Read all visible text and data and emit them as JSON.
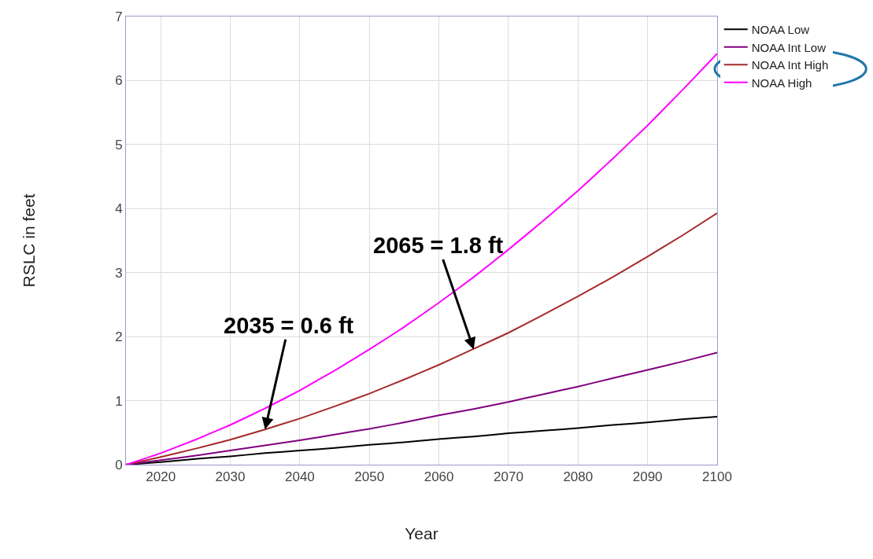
{
  "chart_data": {
    "type": "line",
    "xlabel": "Year",
    "ylabel": "RSLC in feet",
    "x": [
      2015,
      2020,
      2025,
      2030,
      2035,
      2040,
      2045,
      2050,
      2055,
      2060,
      2065,
      2070,
      2075,
      2080,
      2085,
      2090,
      2095,
      2100
    ],
    "series": [
      {
        "name": "NOAA Low",
        "color": "#000000",
        "values": [
          0,
          0.04,
          0.09,
          0.13,
          0.18,
          0.22,
          0.26,
          0.31,
          0.35,
          0.4,
          0.44,
          0.49,
          0.53,
          0.57,
          0.62,
          0.66,
          0.71,
          0.75
        ]
      },
      {
        "name": "NOAA Int Low",
        "color": "#800080",
        "values": [
          0,
          0.07,
          0.14,
          0.22,
          0.3,
          0.38,
          0.47,
          0.56,
          0.66,
          0.77,
          0.87,
          0.98,
          1.1,
          1.22,
          1.35,
          1.48,
          1.61,
          1.75
        ]
      },
      {
        "name": "NOAA Int High",
        "color": "#a52a2a",
        "values": [
          0,
          0.12,
          0.25,
          0.39,
          0.55,
          0.72,
          0.91,
          1.11,
          1.33,
          1.56,
          1.81,
          2.06,
          2.34,
          2.63,
          2.93,
          3.25,
          3.58,
          3.93
        ]
      },
      {
        "name": "NOAA High",
        "color": "#ff00ff",
        "values": [
          0,
          0.18,
          0.39,
          0.62,
          0.88,
          1.16,
          1.47,
          1.8,
          2.15,
          2.53,
          2.93,
          3.36,
          3.81,
          4.28,
          4.78,
          5.3,
          5.85,
          6.42
        ]
      }
    ],
    "annotations": [
      {
        "text": "2035 = 0.6 ft",
        "x": 2035,
        "y": 0.55
      },
      {
        "text": "2065 = 1.8 ft",
        "x": 2065,
        "y": 1.8
      }
    ],
    "xlim": [
      2015,
      2100
    ],
    "xticks": [
      2020,
      2030,
      2040,
      2050,
      2060,
      2070,
      2080,
      2090,
      2100
    ],
    "ylim": [
      0,
      7
    ],
    "yticks": [
      0,
      1,
      2,
      3,
      4,
      5,
      6,
      7
    ],
    "grid": true,
    "legend": "top right",
    "marker": "none",
    "line_style": "solid"
  }
}
